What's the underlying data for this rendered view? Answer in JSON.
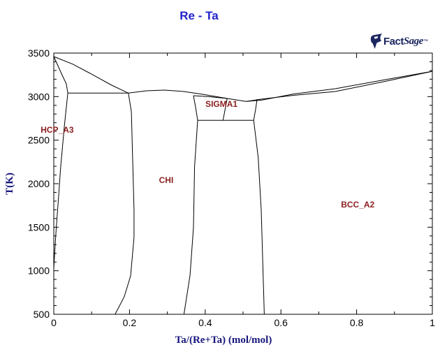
{
  "title": {
    "text": "Re - Ta"
  },
  "logo": {
    "fact": "Fact",
    "sage": "Sage",
    "mark": "™"
  },
  "colors": {
    "title_blue": "#2222cc",
    "axis_navy": "#16167d",
    "phase_maroon": "#8b1e1e",
    "line_black": "#000000",
    "logo_navy": "#1b2660"
  },
  "chart_data": {
    "type": "line",
    "title": "Re - Ta",
    "xlabel": "Ta/(Re+Ta) (mol/mol)",
    "ylabel": "T(K)",
    "xlim": [
      0,
      1
    ],
    "ylim": [
      500,
      3500
    ],
    "grid": false,
    "legend": false,
    "x_axis": {
      "major": [
        0,
        0.2,
        0.4,
        0.6,
        0.8,
        1
      ],
      "labels": [
        "0",
        "0.2",
        "0.4",
        "0.6",
        "0.8",
        "1"
      ],
      "minor_step": 0.1
    },
    "y_axis": {
      "major": [
        500,
        1000,
        1500,
        2000,
        2500,
        3000,
        3500
      ],
      "labels": [
        "500",
        "1000",
        "1500",
        "2000",
        "2500",
        "3000",
        "3500"
      ],
      "minor_step": 100
    },
    "phase_labels": [
      {
        "text": "HCP_A3",
        "x": 0.009,
        "y": 2618
      },
      {
        "text": "CHI",
        "x": 0.297,
        "y": 2040
      },
      {
        "text": "SIGMA1",
        "x": 0.443,
        "y": 2915
      },
      {
        "text": "BCC_A2",
        "x": 0.803,
        "y": 1760
      }
    ],
    "series": [
      {
        "name": "liquidus-re-hcp",
        "x": [
          0.0,
          0.05,
          0.1,
          0.153,
          0.197
        ],
        "y": [
          3460,
          3373,
          3258,
          3131,
          3040
        ]
      },
      {
        "name": "hcp-solidus",
        "x": [
          0.0,
          0.02,
          0.033,
          0.037
        ],
        "y": [
          3460,
          3267,
          3147,
          3040
        ]
      },
      {
        "name": "eutectic-horizontal-3040K",
        "x": [
          0.037,
          0.197
        ],
        "y": [
          3040,
          3040
        ]
      },
      {
        "name": "hcp-solvus",
        "x": [
          0.037,
          0.028,
          0.018,
          0.013,
          0.006,
          0.002,
          0.0,
          0.0
        ],
        "y": [
          3040,
          2666,
          2185,
          1864,
          1463,
          1182,
          1022,
          500
        ]
      },
      {
        "name": "chi-left-boundary",
        "x": [
          0.197,
          0.205,
          0.208,
          0.212,
          0.212,
          0.203,
          0.186,
          0.162
        ],
        "y": [
          3040,
          2826,
          2345,
          1703,
          1382,
          941,
          700,
          500
        ]
      },
      {
        "name": "main-liquidus",
        "x": [
          0.197,
          0.245,
          0.292,
          0.343,
          0.393,
          0.458,
          0.508,
          0.55,
          0.633,
          0.744,
          0.87,
          1.0
        ],
        "y": [
          3040,
          3067,
          3075,
          3059,
          3027,
          2979,
          2944,
          2960,
          3030,
          3091,
          3190,
          3291
        ]
      },
      {
        "name": "sigma-upper-boundary",
        "x": [
          0.369,
          0.412,
          0.458
        ],
        "y": [
          3011,
          2999,
          2979
        ]
      },
      {
        "name": "sigma-left-upper",
        "x": [
          0.369,
          0.375,
          0.38
        ],
        "y": [
          3011,
          2866,
          2728
        ]
      },
      {
        "name": "sigma-congruent-line",
        "x": [
          0.458,
          0.447
        ],
        "y": [
          2975,
          2728
        ]
      },
      {
        "name": "eutectoid-horizontal-2728K",
        "x": [
          0.38,
          0.528
        ],
        "y": [
          2728,
          2728
        ]
      },
      {
        "name": "bcc-solidus",
        "x": [
          0.508,
          0.556,
          0.633,
          0.744,
          0.87,
          1.0
        ],
        "y": [
          2944,
          2975,
          3015,
          3059,
          3170,
          3291
        ]
      },
      {
        "name": "sigma-right-upper",
        "x": [
          0.537,
          0.533,
          0.528
        ],
        "y": [
          2970,
          2850,
          2728
        ]
      },
      {
        "name": "sigma-chi-solvus",
        "x": [
          0.38,
          0.372,
          0.369,
          0.36,
          0.344
        ],
        "y": [
          2728,
          2200,
          1500,
          950,
          500
        ]
      },
      {
        "name": "bcc-solvus",
        "x": [
          0.528,
          0.54,
          0.548,
          0.552,
          0.556
        ],
        "y": [
          2728,
          2300,
          1700,
          1100,
          500
        ]
      }
    ]
  }
}
